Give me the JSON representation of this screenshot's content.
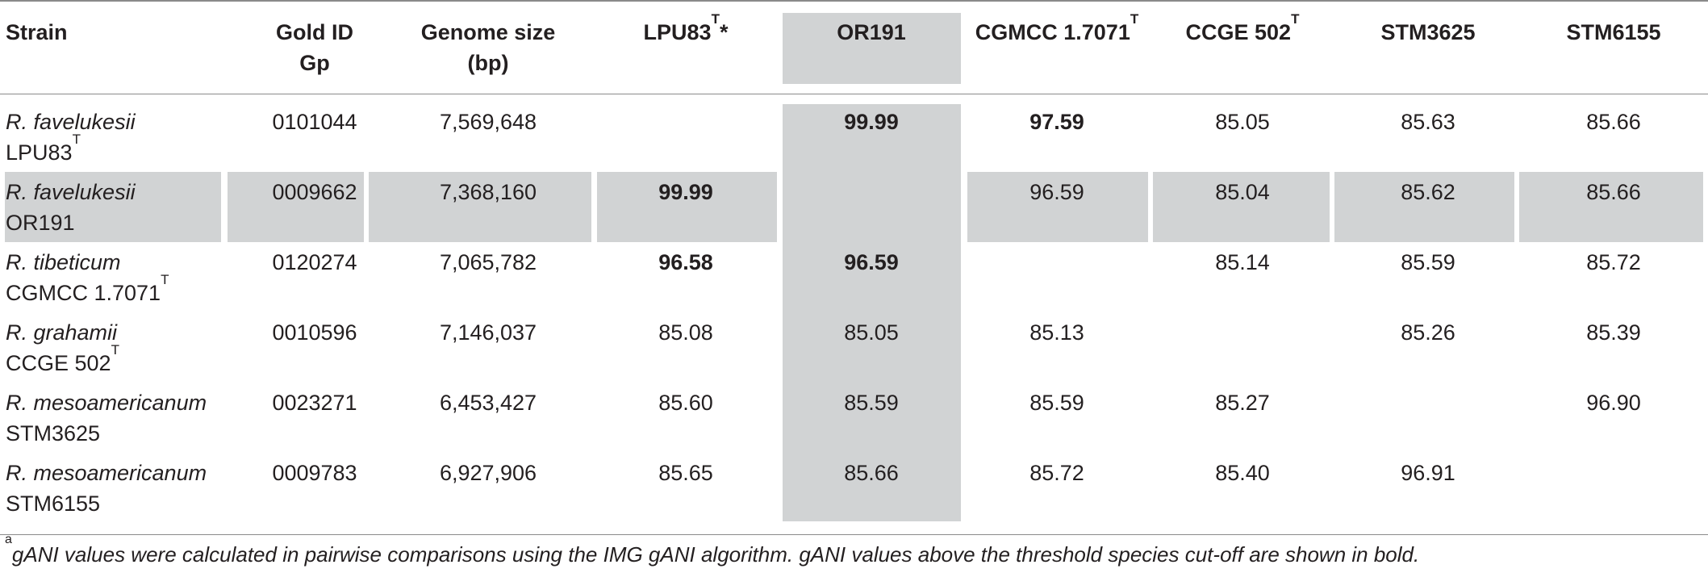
{
  "header": {
    "strain": "Strain",
    "gold_id_line1": "Gold ID",
    "gold_id_line2": "Gp",
    "genome_line1": "Genome size",
    "genome_line2": "(bp)",
    "lpu83": "LPU83",
    "lpu83_sup": "T",
    "lpu83_mark": "*",
    "or191": "OR191",
    "cgmcc": "CGMCC 1.7071",
    "cgmcc_sup": "T",
    "ccge": "CCGE 502",
    "ccge_sup": "T",
    "stm3625": "STM3625",
    "stm6155": "STM6155"
  },
  "rows": [
    {
      "species": "R. favelukesii",
      "strain": "LPU83",
      "strain_sup": "T",
      "gold_id": "0101044",
      "genome_size": "7,569,648",
      "lpu83": "",
      "or191": "99.99",
      "cgmcc": "97.59",
      "ccge": "85.05",
      "stm3625": "85.63",
      "stm6155": "85.66"
    },
    {
      "species": "R. favelukesii",
      "strain": "OR191",
      "strain_sup": "",
      "gold_id": "0009662",
      "genome_size": "7,368,160",
      "lpu83": "99.99",
      "or191": "",
      "cgmcc": "96.59",
      "ccge": "85.04",
      "stm3625": "85.62",
      "stm6155": "85.66"
    },
    {
      "species": "R. tibeticum",
      "strain": "CGMCC 1.7071",
      "strain_sup": "T",
      "gold_id": "0120274",
      "genome_size": "7,065,782",
      "lpu83": "96.58",
      "or191": "96.59",
      "cgmcc": "",
      "ccge": "85.14",
      "stm3625": "85.59",
      "stm6155": "85.72"
    },
    {
      "species": "R. grahamii",
      "strain": "CCGE 502",
      "strain_sup": "T",
      "gold_id": "0010596",
      "genome_size": "7,146,037",
      "lpu83": "85.08",
      "or191": "85.05",
      "cgmcc": "85.13",
      "ccge": "",
      "stm3625": "85.26",
      "stm6155": "85.39"
    },
    {
      "species": "R. mesoamericanum",
      "strain": "STM3625",
      "strain_sup": "",
      "gold_id": "0023271",
      "genome_size": "6,453,427",
      "lpu83": "85.60",
      "or191": "85.59",
      "cgmcc": "85.59",
      "ccge": "85.27",
      "stm3625": "",
      "stm6155": "96.90"
    },
    {
      "species": "R. mesoamericanum",
      "strain": "STM6155",
      "strain_sup": "",
      "gold_id": "0009783",
      "genome_size": "6,927,906",
      "lpu83": "85.65",
      "or191": "85.66",
      "cgmcc": "85.72",
      "ccge": "85.40",
      "stm3625": "96.91",
      "stm6155": ""
    }
  ],
  "footnote": {
    "marker": "a",
    "text": "gANI values were calculated in pairwise comparisons using the IMG gANI algorithm. gANI values above the threshold species cut-off are shown in bold."
  },
  "colors": {
    "highlight": "#d1d3d4",
    "rule": "#8a8a8a",
    "text": "#231f20"
  }
}
